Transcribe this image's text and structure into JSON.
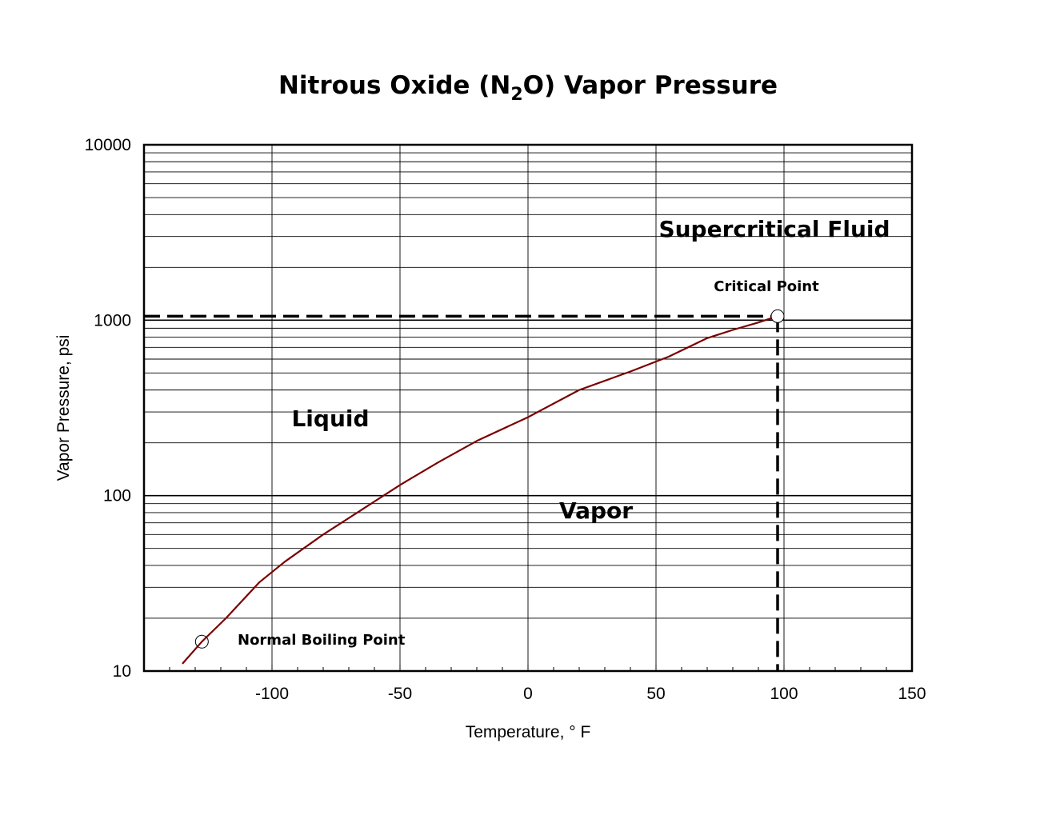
{
  "chart_data": {
    "type": "line",
    "title_parts": [
      "Nitrous Oxide (N",
      "2",
      "O) Vapor Pressure"
    ],
    "xlabel": "Temperature, ° F",
    "ylabel": "Vapor Pressure, psi",
    "xlim": [
      -150,
      150
    ],
    "ylim": [
      10,
      10000
    ],
    "yscale": "log",
    "grid": true,
    "x_ticks": [
      -100,
      -50,
      0,
      50,
      100,
      150
    ],
    "x_tick_labels": [
      "-100",
      "-50",
      "0",
      "50",
      "100",
      "150"
    ],
    "y_ticks": [
      10,
      100,
      1000,
      10000
    ],
    "y_tick_labels": [
      "10",
      "100",
      "1000",
      "10000"
    ],
    "series": [
      {
        "color": "#7a0000",
        "x": [
          -135,
          -127.4,
          -118,
          -105,
          -95,
          -80,
          -65,
          -50,
          -35,
          -20,
          0,
          20,
          40,
          55,
          70,
          80,
          90,
          97.5
        ],
        "y": [
          11,
          14.7,
          20,
          32,
          42,
          60,
          83,
          115,
          155,
          205,
          280,
          400,
          510,
          620,
          790,
          880,
          970,
          1054
        ]
      }
    ],
    "critical_point": {
      "x": 97.5,
      "y": 1054,
      "label": "Critical Point"
    },
    "normal_boiling_point": {
      "x": -127.4,
      "y": 14.7,
      "label": "Normal Boiling Point"
    },
    "regions": {
      "supercritical": "Supercritical Fluid",
      "liquid": "Liquid",
      "vapor": "Vapor"
    }
  }
}
